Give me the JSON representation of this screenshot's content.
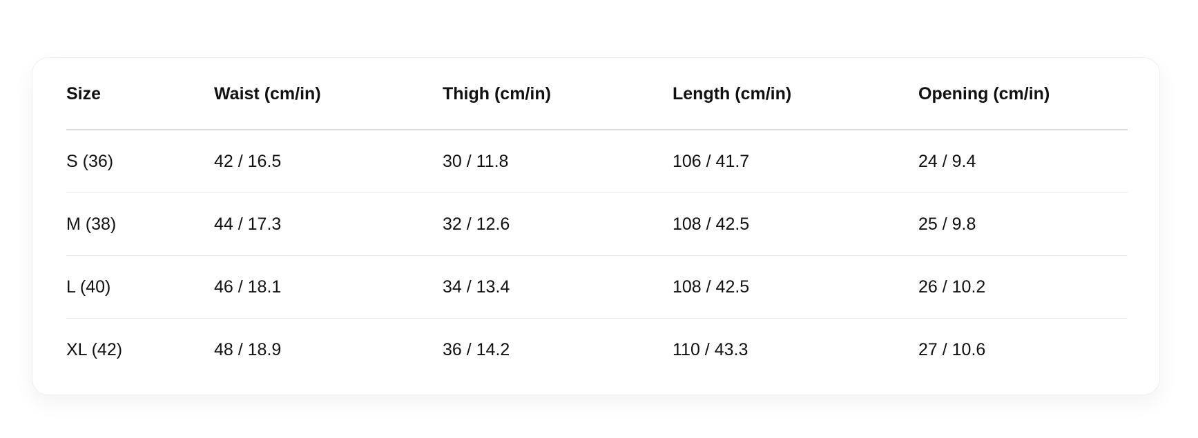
{
  "table": {
    "headers": [
      "Size",
      "Waist (cm/in)",
      "Thigh (cm/in)",
      "Length (cm/in)",
      "Opening (cm/in)"
    ],
    "rows": [
      [
        "S (36)",
        "42 / 16.5",
        "30 / 11.8",
        "106 / 41.7",
        "24 / 9.4"
      ],
      [
        "M (38)",
        "44 / 17.3",
        "32 / 12.6",
        "108 / 42.5",
        "25 / 9.8"
      ],
      [
        "L (40)",
        "46 / 18.1",
        "34 / 13.4",
        "108 / 42.5",
        "26 / 10.2"
      ],
      [
        "XL (42)",
        "48 / 18.9",
        "36 / 14.2",
        "110 / 43.3",
        "27 / 10.6"
      ]
    ]
  }
}
